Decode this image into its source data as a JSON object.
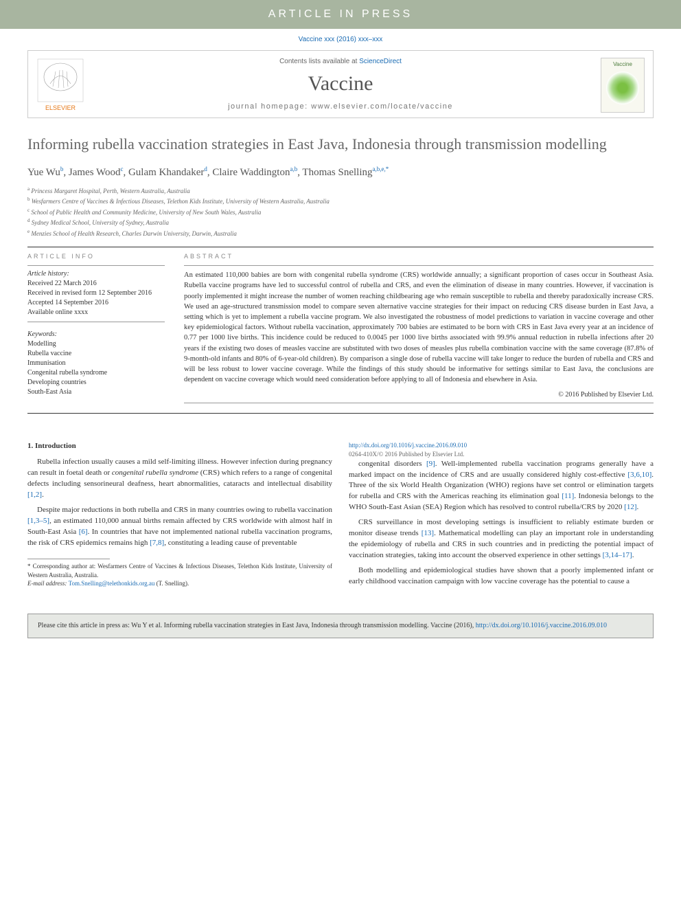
{
  "banner": "ARTICLE  IN  PRESS",
  "topCitation": "Vaccine xxx (2016) xxx–xxx",
  "headerBox": {
    "contentsPrefix": "Contents lists available at ",
    "contentsLink": "ScienceDirect",
    "journal": "Vaccine",
    "homepagePrefix": "journal homepage: ",
    "homepage": "www.elsevier.com/locate/vaccine",
    "coverLabel": "Vaccine"
  },
  "title": "Informing rubella vaccination strategies in East Java, Indonesia through transmission modelling",
  "authors": [
    {
      "name": "Yue Wu",
      "aff": "b"
    },
    {
      "name": "James Wood",
      "aff": "c"
    },
    {
      "name": "Gulam Khandaker",
      "aff": "d"
    },
    {
      "name": "Claire Waddington",
      "aff": "a,b"
    },
    {
      "name": "Thomas Snelling",
      "aff": "a,b,e,*"
    }
  ],
  "affiliations": [
    {
      "sup": "a",
      "text": "Princess Margaret Hospital, Perth, Western Australia, Australia"
    },
    {
      "sup": "b",
      "text": "Wesfarmers Centre of Vaccines & Infectious Diseases, Telethon Kids Institute, University of Western Australia, Australia"
    },
    {
      "sup": "c",
      "text": "School of Public Health and Community Medicine, University of New South Wales, Australia"
    },
    {
      "sup": "d",
      "text": "Sydney Medical School, University of Sydney, Australia"
    },
    {
      "sup": "e",
      "text": "Menzies School of Health Research, Charles Darwin University, Darwin, Australia"
    }
  ],
  "articleInfo": {
    "heading": "ARTICLE INFO",
    "historyLabel": "Article history:",
    "history": [
      "Received 22 March 2016",
      "Received in revised form 12 September 2016",
      "Accepted 14 September 2016",
      "Available online xxxx"
    ],
    "keywordsLabel": "Keywords:",
    "keywords": [
      "Modelling",
      "Rubella vaccine",
      "Immunisation",
      "Congenital rubella syndrome",
      "Developing countries",
      "South-East Asia"
    ]
  },
  "abstract": {
    "heading": "ABSTRACT",
    "text": "An estimated 110,000 babies are born with congenital rubella syndrome (CRS) worldwide annually; a significant proportion of cases occur in Southeast Asia. Rubella vaccine programs have led to successful control of rubella and CRS, and even the elimination of disease in many countries. However, if vaccination is poorly implemented it might increase the number of women reaching childbearing age who remain susceptible to rubella and thereby paradoxically increase CRS. We used an age-structured transmission model to compare seven alternative vaccine strategies for their impact on reducing CRS disease burden in East Java, a setting which is yet to implement a rubella vaccine program. We also investigated the robustness of model predictions to variation in vaccine coverage and other key epidemiological factors. Without rubella vaccination, approximately 700 babies are estimated to be born with CRS in East Java every year at an incidence of 0.77 per 1000 live births. This incidence could be reduced to 0.0045 per 1000 live births associated with 99.9% annual reduction in rubella infections after 20 years if the existing two doses of measles vaccine are substituted with two doses of measles plus rubella combination vaccine with the same coverage (87.8% of 9-month-old infants and 80% of 6-year-old children). By comparison a single dose of rubella vaccine will take longer to reduce the burden of rubella and CRS and will be less robust to lower vaccine coverage. While the findings of this study should be informative for settings similar to East Java, the conclusions are dependent on vaccine coverage which would need consideration before applying to all of Indonesia and elsewhere in Asia.",
    "copyright": "© 2016 Published by Elsevier Ltd."
  },
  "intro": {
    "heading": "1. Introduction",
    "p1a": "Rubella infection usually causes a mild self-limiting illness. However infection during pregnancy can result in foetal death or ",
    "p1em": "congenital rubella syndrome",
    "p1b": " (CRS) which refers to a range of congenital defects including sensorineural deafness, heart abnormalities, cataracts and intellectual disability ",
    "p1ref": "[1,2]",
    "p1c": ".",
    "p2a": "Despite major reductions in both rubella and CRS in many countries owing to rubella vaccination ",
    "p2ref1": "[1,3–5]",
    "p2b": ", an estimated 110,000 annual births remain affected by CRS worldwide with almost half in South-East Asia ",
    "p2ref2": "[6]",
    "p2c": ". In countries that have not implemented national rubella vaccination programs, the risk of CRS epidemics remains high ",
    "p2ref3": "[7,8]",
    "p2d": ", constituting a leading cause of preventable",
    "p3a": "congenital disorders ",
    "p3ref1": "[9]",
    "p3b": ". Well-implemented rubella vaccination programs generally have a marked impact on the incidence of CRS and are usually considered highly cost-effective ",
    "p3ref2": "[3,6,10]",
    "p3c": ". Three of the six World Health Organization (WHO) regions have set control or elimination targets for rubella and CRS with the Americas reaching its elimination goal ",
    "p3ref3": "[11]",
    "p3d": ". Indonesia belongs to the WHO South-East Asian (SEA) Region which has resolved to control rubella/CRS by 2020 ",
    "p3ref4": "[12]",
    "p3e": ".",
    "p4a": "CRS surveillance in most developing settings is insufficient to reliably estimate burden or monitor disease trends ",
    "p4ref1": "[13]",
    "p4b": ". Mathematical modelling can play an important role in understanding the epidemiology of rubella and CRS in such countries and in predicting the potential impact of vaccination strategies, taking into account the observed experience in other settings ",
    "p4ref2": "[3,14–17]",
    "p4c": ".",
    "p5": "Both modelling and epidemiological studies have shown that a poorly implemented infant or early childhood vaccination campaign with low vaccine coverage has the potential to cause a"
  },
  "footnote": {
    "star": "* Corresponding author at: Wesfarmers Centre of Vaccines & Infectious Diseases, Telethon Kids Institute, University of Western Australia, Australia.",
    "emailLabel": "E-mail address: ",
    "email": "Tom.Snelling@telethonkids.org.au",
    "emailSuffix": " (T. Snelling)."
  },
  "doi": {
    "url": "http://dx.doi.org/10.1016/j.vaccine.2016.09.010",
    "line2": "0264-410X/© 2016 Published by Elsevier Ltd."
  },
  "citeBox": {
    "prefix": "Please cite this article in press as: Wu Y et al. Informing rubella vaccination strategies in East Java, Indonesia through transmission modelling. Vaccine (2016), ",
    "link": "http://dx.doi.org/10.1016/j.vaccine.2016.09.010"
  },
  "colors": {
    "bannerBg": "#a8b5a0",
    "link": "#1a6bb3",
    "headingGray": "#666",
    "citeBoxBg": "#e6e8e4"
  }
}
